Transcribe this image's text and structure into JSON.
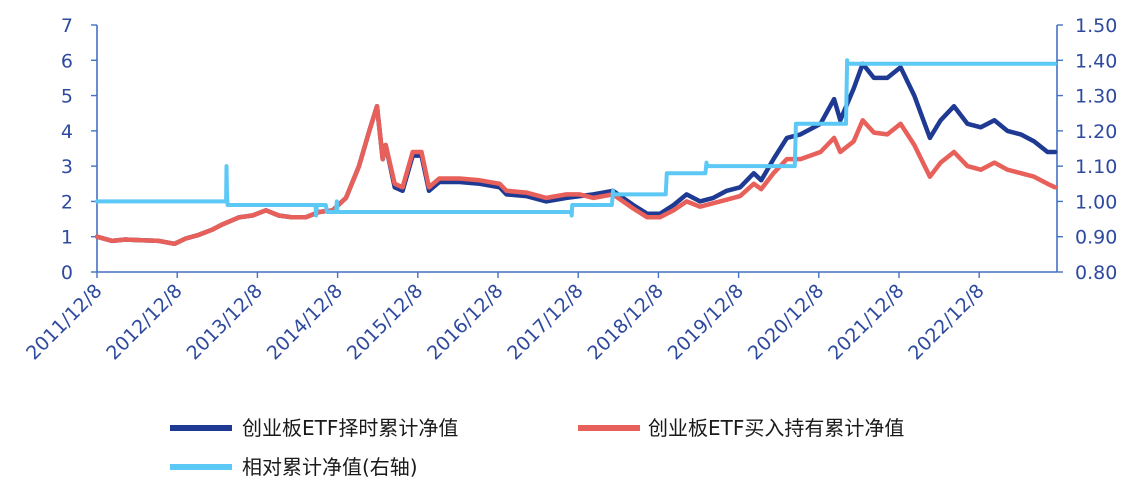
{
  "chart_data": {
    "type": "line",
    "title": "",
    "x_tick_labels": [
      "2011/12/8",
      "2012/12/8",
      "2013/12/8",
      "2014/12/8",
      "2015/12/8",
      "2016/12/8",
      "2017/12/8",
      "2018/12/8",
      "2019/12/8",
      "2020/12/8",
      "2021/12/8",
      "2022/12/8"
    ],
    "y_left": {
      "ylim": [
        0,
        7
      ],
      "ticks": [
        "0",
        "1",
        "2",
        "3",
        "4",
        "5",
        "6",
        "7"
      ]
    },
    "y_right": {
      "ylim": [
        0.8,
        1.5
      ],
      "ticks": [
        "0.80",
        "0.90",
        "1.00",
        "1.10",
        "1.20",
        "1.30",
        "1.40",
        "1.50"
      ]
    },
    "x_range": [
      "2011-12-08",
      "2023-11-20"
    ],
    "legend_position": "bottom",
    "colors": {
      "axis": "#4472C4",
      "tick_text": "#2E4A9E"
    },
    "series": [
      {
        "name": "创业板ETF择时累计净值",
        "axis": "left",
        "color": "#1F3A93",
        "points": [
          [
            "2011-12-08",
            1.0
          ],
          [
            "2012-02-15",
            0.88
          ],
          [
            "2012-04-15",
            0.92
          ],
          [
            "2012-07-01",
            0.9
          ],
          [
            "2012-09-15",
            0.88
          ],
          [
            "2012-11-25",
            0.8
          ],
          [
            "2013-01-15",
            0.95
          ],
          [
            "2013-03-15",
            1.05
          ],
          [
            "2013-05-15",
            1.2
          ],
          [
            "2013-07-01",
            1.35
          ],
          [
            "2013-09-15",
            1.55
          ],
          [
            "2013-11-15",
            1.6
          ],
          [
            "2014-01-15",
            1.75
          ],
          [
            "2014-03-15",
            1.6
          ],
          [
            "2014-05-15",
            1.55
          ],
          [
            "2014-07-15",
            1.55
          ],
          [
            "2014-09-15",
            1.7
          ],
          [
            "2014-11-15",
            1.75
          ],
          [
            "2015-01-15",
            2.1
          ],
          [
            "2015-03-15",
            3.0
          ],
          [
            "2015-05-01",
            4.0
          ],
          [
            "2015-06-05",
            4.7
          ],
          [
            "2015-07-01",
            3.2
          ],
          [
            "2015-07-15",
            3.6
          ],
          [
            "2015-08-25",
            2.4
          ],
          [
            "2015-09-30",
            2.3
          ],
          [
            "2015-11-15",
            3.3
          ],
          [
            "2015-12-25",
            3.3
          ],
          [
            "2016-01-28",
            2.3
          ],
          [
            "2016-03-15",
            2.55
          ],
          [
            "2016-06-15",
            2.55
          ],
          [
            "2016-09-15",
            2.5
          ],
          [
            "2016-12-15",
            2.4
          ],
          [
            "2017-01-15",
            2.2
          ],
          [
            "2017-04-15",
            2.15
          ],
          [
            "2017-07-15",
            2.0
          ],
          [
            "2017-10-15",
            2.1
          ],
          [
            "2017-12-15",
            2.15
          ],
          [
            "2018-02-15",
            2.2
          ],
          [
            "2018-05-15",
            2.3
          ],
          [
            "2018-08-15",
            1.9
          ],
          [
            "2018-10-18",
            1.65
          ],
          [
            "2018-12-15",
            1.65
          ],
          [
            "2019-02-15",
            1.9
          ],
          [
            "2019-04-15",
            2.2
          ],
          [
            "2019-06-15",
            2.0
          ],
          [
            "2019-08-15",
            2.1
          ],
          [
            "2019-10-15",
            2.3
          ],
          [
            "2019-12-15",
            2.4
          ],
          [
            "2020-02-15",
            2.8
          ],
          [
            "2020-03-20",
            2.6
          ],
          [
            "2020-05-15",
            3.2
          ],
          [
            "2020-07-15",
            3.8
          ],
          [
            "2020-09-15",
            3.9
          ],
          [
            "2020-12-15",
            4.2
          ],
          [
            "2021-02-15",
            4.9
          ],
          [
            "2021-03-15",
            4.3
          ],
          [
            "2021-05-15",
            5.2
          ],
          [
            "2021-06-25",
            5.9
          ],
          [
            "2021-08-15",
            5.5
          ],
          [
            "2021-10-15",
            5.5
          ],
          [
            "2021-12-15",
            5.8
          ],
          [
            "2022-02-15",
            5.0
          ],
          [
            "2022-04-27",
            3.8
          ],
          [
            "2022-06-15",
            4.3
          ],
          [
            "2022-08-15",
            4.7
          ],
          [
            "2022-10-15",
            4.2
          ],
          [
            "2022-12-15",
            4.1
          ],
          [
            "2023-02-15",
            4.3
          ],
          [
            "2023-04-15",
            4.0
          ],
          [
            "2023-06-15",
            3.9
          ],
          [
            "2023-08-15",
            3.7
          ],
          [
            "2023-10-15",
            3.4
          ],
          [
            "2023-11-20",
            3.4
          ]
        ]
      },
      {
        "name": "创业板ETF买入持有累计净值",
        "axis": "left",
        "color": "#E8605A",
        "points": [
          [
            "2011-12-08",
            1.0
          ],
          [
            "2012-02-15",
            0.88
          ],
          [
            "2012-04-15",
            0.92
          ],
          [
            "2012-07-01",
            0.9
          ],
          [
            "2012-09-15",
            0.88
          ],
          [
            "2012-11-25",
            0.8
          ],
          [
            "2013-01-15",
            0.95
          ],
          [
            "2013-03-15",
            1.05
          ],
          [
            "2013-05-15",
            1.2
          ],
          [
            "2013-07-01",
            1.35
          ],
          [
            "2013-09-15",
            1.55
          ],
          [
            "2013-11-15",
            1.6
          ],
          [
            "2014-01-15",
            1.75
          ],
          [
            "2014-03-15",
            1.6
          ],
          [
            "2014-05-15",
            1.55
          ],
          [
            "2014-07-15",
            1.55
          ],
          [
            "2014-09-15",
            1.7
          ],
          [
            "2014-11-15",
            1.75
          ],
          [
            "2015-01-15",
            2.1
          ],
          [
            "2015-03-15",
            3.0
          ],
          [
            "2015-05-01",
            4.0
          ],
          [
            "2015-06-05",
            4.7
          ],
          [
            "2015-07-01",
            3.2
          ],
          [
            "2015-07-15",
            3.6
          ],
          [
            "2015-08-25",
            2.5
          ],
          [
            "2015-09-30",
            2.4
          ],
          [
            "2015-11-15",
            3.4
          ],
          [
            "2015-12-25",
            3.4
          ],
          [
            "2016-01-28",
            2.4
          ],
          [
            "2016-03-15",
            2.65
          ],
          [
            "2016-06-15",
            2.65
          ],
          [
            "2016-09-15",
            2.6
          ],
          [
            "2016-12-15",
            2.5
          ],
          [
            "2017-01-15",
            2.3
          ],
          [
            "2017-04-15",
            2.25
          ],
          [
            "2017-07-15",
            2.1
          ],
          [
            "2017-10-15",
            2.2
          ],
          [
            "2017-12-15",
            2.2
          ],
          [
            "2018-02-15",
            2.1
          ],
          [
            "2018-05-15",
            2.2
          ],
          [
            "2018-08-15",
            1.8
          ],
          [
            "2018-10-18",
            1.55
          ],
          [
            "2018-12-15",
            1.55
          ],
          [
            "2019-02-15",
            1.75
          ],
          [
            "2019-04-15",
            2.0
          ],
          [
            "2019-06-15",
            1.85
          ],
          [
            "2019-08-15",
            1.95
          ],
          [
            "2019-10-15",
            2.05
          ],
          [
            "2019-12-15",
            2.15
          ],
          [
            "2020-02-15",
            2.5
          ],
          [
            "2020-03-20",
            2.35
          ],
          [
            "2020-05-15",
            2.8
          ],
          [
            "2020-07-15",
            3.2
          ],
          [
            "2020-09-15",
            3.2
          ],
          [
            "2020-12-15",
            3.4
          ],
          [
            "2021-02-15",
            3.8
          ],
          [
            "2021-03-15",
            3.4
          ],
          [
            "2021-05-15",
            3.7
          ],
          [
            "2021-06-25",
            4.3
          ],
          [
            "2021-08-15",
            3.95
          ],
          [
            "2021-10-15",
            3.9
          ],
          [
            "2021-12-15",
            4.2
          ],
          [
            "2022-02-15",
            3.6
          ],
          [
            "2022-04-27",
            2.7
          ],
          [
            "2022-06-15",
            3.1
          ],
          [
            "2022-08-15",
            3.4
          ],
          [
            "2022-10-15",
            3.0
          ],
          [
            "2022-12-15",
            2.9
          ],
          [
            "2023-02-15",
            3.1
          ],
          [
            "2023-04-15",
            2.9
          ],
          [
            "2023-06-15",
            2.8
          ],
          [
            "2023-08-15",
            2.7
          ],
          [
            "2023-10-15",
            2.5
          ],
          [
            "2023-11-20",
            2.4
          ]
        ]
      },
      {
        "name": "相对累计净值(右轴)",
        "axis": "right",
        "color": "#5BC8F5",
        "points": [
          [
            "2011-12-08",
            1.0
          ],
          [
            "2013-07-18",
            1.0
          ],
          [
            "2013-07-20",
            1.1
          ],
          [
            "2013-07-22",
            1.02
          ],
          [
            "2013-07-25",
            0.99
          ],
          [
            "2014-08-29",
            0.99
          ],
          [
            "2014-09-01",
            0.96
          ],
          [
            "2014-09-04",
            0.99
          ],
          [
            "2014-10-15",
            0.99
          ],
          [
            "2014-10-20",
            0.97
          ],
          [
            "2014-12-01",
            0.97
          ],
          [
            "2014-12-04",
            1.0
          ],
          [
            "2014-12-07",
            0.97
          ],
          [
            "2017-11-05",
            0.97
          ],
          [
            "2017-11-08",
            0.96
          ],
          [
            "2017-11-10",
            0.99
          ],
          [
            "2018-05-10",
            0.99
          ],
          [
            "2018-05-15",
            1.03
          ],
          [
            "2018-05-18",
            1.02
          ],
          [
            "2019-01-10",
            1.02
          ],
          [
            "2019-01-15",
            1.08
          ],
          [
            "2019-07-10",
            1.08
          ],
          [
            "2019-07-15",
            1.11
          ],
          [
            "2019-07-18",
            1.1
          ],
          [
            "2020-08-20",
            1.1
          ],
          [
            "2020-08-25",
            1.22
          ],
          [
            "2021-04-10",
            1.22
          ],
          [
            "2021-04-15",
            1.4
          ],
          [
            "2021-04-18",
            1.39
          ],
          [
            "2023-11-20",
            1.39
          ]
        ]
      }
    ]
  }
}
